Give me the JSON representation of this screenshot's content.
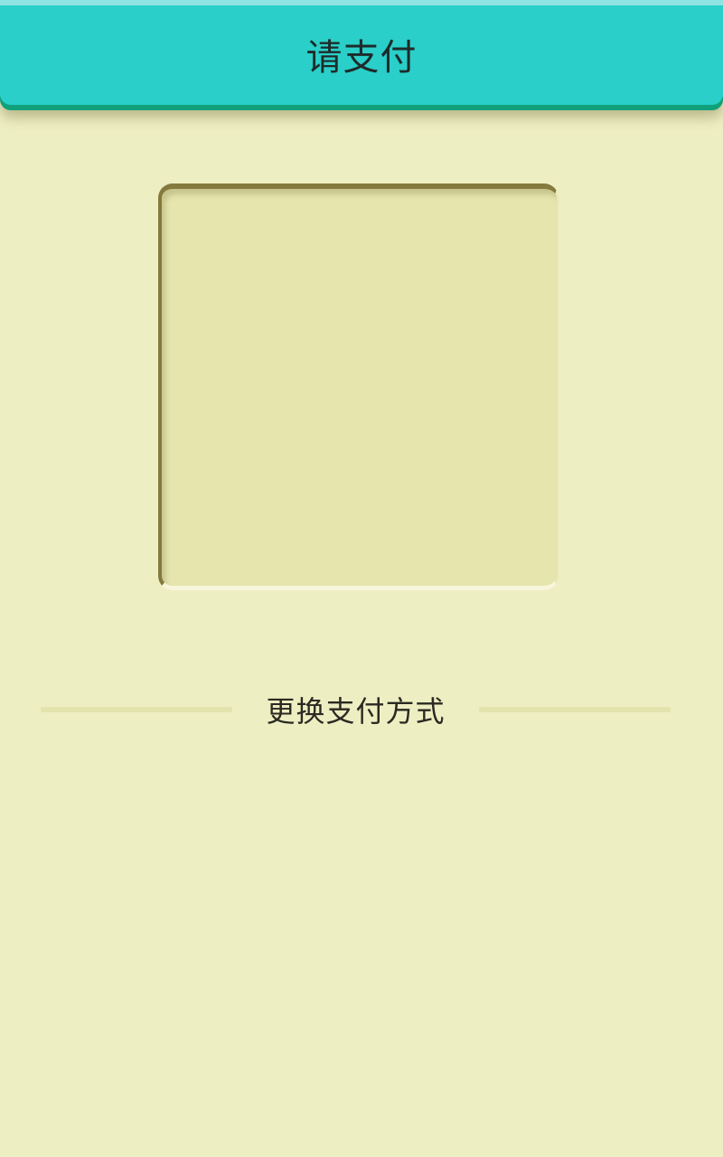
{
  "header": {
    "title": "请支付"
  },
  "payment": {
    "switch_method_label": "更换支付方式"
  },
  "colors": {
    "header_bg": "#29CFC8",
    "header_shadow": "#10A07A",
    "page_bg": "#EEEEC3",
    "qr_frame_bg": "#E5E5AD"
  }
}
